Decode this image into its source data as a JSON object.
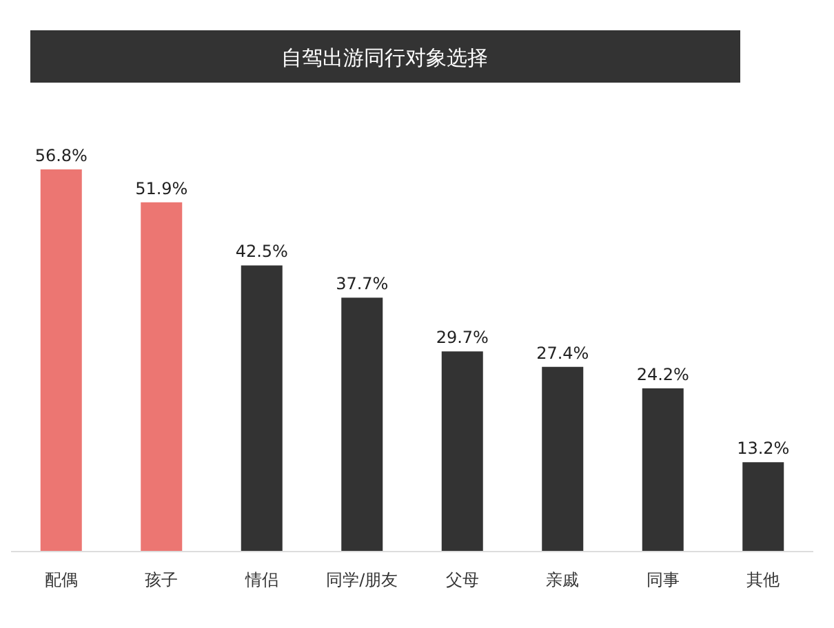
{
  "chart_data": {
    "type": "bar",
    "title": "自驾出游同行对象选择",
    "categories": [
      "配偶",
      "孩子",
      "情侣",
      "同学/朋友",
      "父母",
      "亲戚",
      "同事",
      "其他"
    ],
    "values": [
      56.8,
      51.9,
      42.5,
      37.7,
      29.7,
      27.4,
      24.2,
      13.2
    ],
    "value_labels": [
      "56.8%",
      "51.9%",
      "42.5%",
      "37.7%",
      "29.7%",
      "27.4%",
      "24.2%",
      "13.2%"
    ],
    "colors": [
      "#ec7672",
      "#ec7672",
      "#333333",
      "#333333",
      "#333333",
      "#333333",
      "#333333",
      "#333333"
    ]
  }
}
